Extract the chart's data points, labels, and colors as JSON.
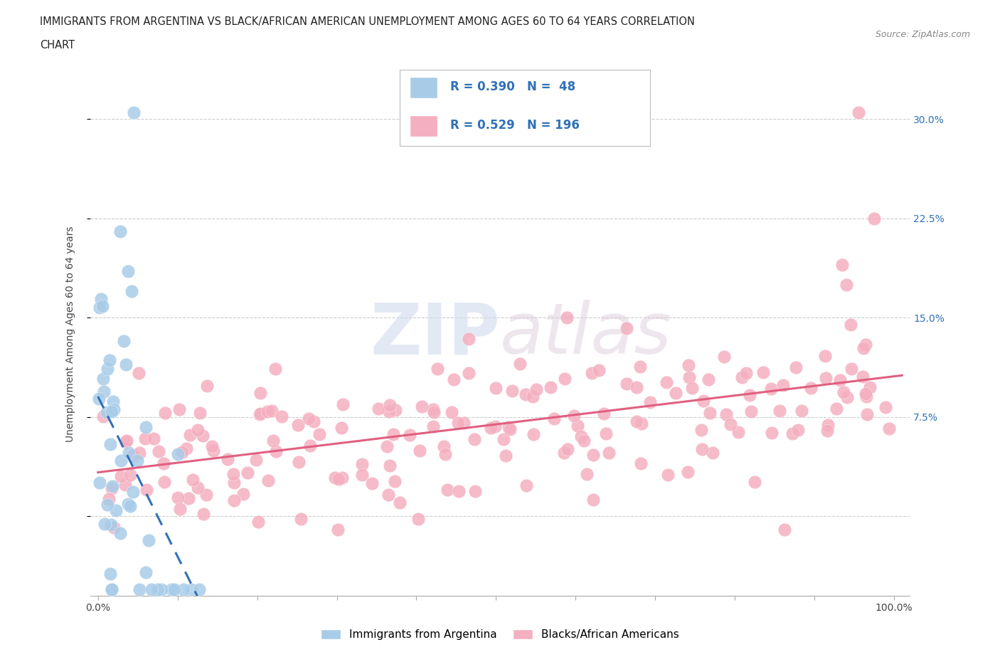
{
  "title_line1": "IMMIGRANTS FROM ARGENTINA VS BLACK/AFRICAN AMERICAN UNEMPLOYMENT AMONG AGES 60 TO 64 YEARS CORRELATION",
  "title_line2": "CHART",
  "source": "Source: ZipAtlas.com",
  "ylabel": "Unemployment Among Ages 60 to 64 years",
  "xlim": [
    -0.01,
    1.02
  ],
  "ylim": [
    -0.06,
    0.335
  ],
  "xticks": [
    0.0,
    0.1,
    0.2,
    0.3,
    0.4,
    0.5,
    0.6,
    0.7,
    0.8,
    0.9,
    1.0
  ],
  "xticklabels": [
    "0.0%",
    "",
    "",
    "",
    "",
    "",
    "",
    "",
    "",
    "",
    "100.0%"
  ],
  "yticks": [
    0.0,
    0.075,
    0.15,
    0.225,
    0.3
  ],
  "yticklabels_right": [
    "",
    "7.5%",
    "15.0%",
    "22.5%",
    "30.0%"
  ],
  "blue_R": 0.39,
  "blue_N": 48,
  "pink_R": 0.529,
  "pink_N": 196,
  "blue_color": "#a8cce8",
  "pink_color": "#f4afc0",
  "blue_line_color": "#3070b8",
  "pink_line_color": "#e06080",
  "watermark_zip": "ZIP",
  "watermark_atlas": "atlas",
  "legend_label_blue": "Immigrants from Argentina",
  "legend_label_pink": "Blacks/African Americans",
  "legend_text_color": "#3070b8",
  "title_color": "#222222",
  "source_color": "#888888",
  "ylabel_color": "#444444",
  "ytick_color": "#3070b8",
  "xtick_color": "#444444",
  "grid_color": "#cccccc",
  "background_color": "#ffffff"
}
